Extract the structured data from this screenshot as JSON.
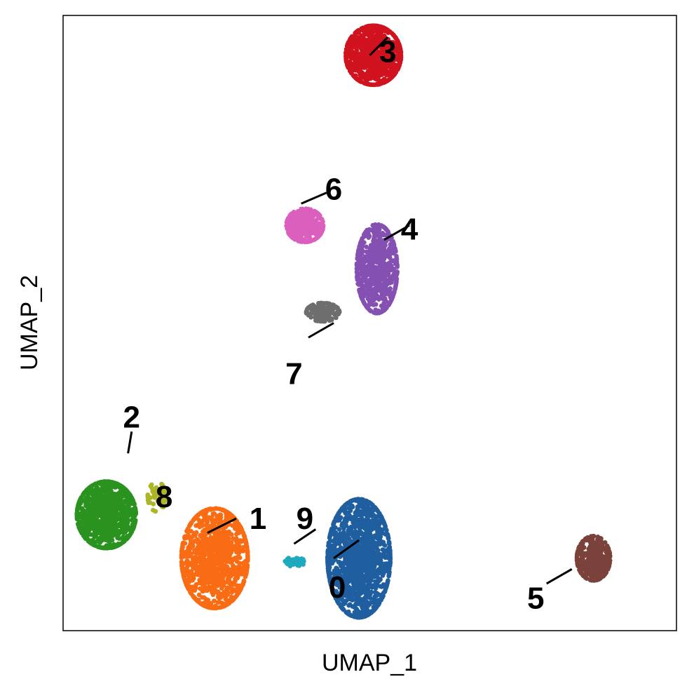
{
  "chart_data": {
    "type": "scatter",
    "title": "",
    "xlabel": "UMAP_1",
    "ylabel": "UMAP_2",
    "xlim": [
      -7.0,
      10.0
    ],
    "ylim": [
      -8.0,
      9.0
    ],
    "grid": false,
    "legend": "none (cluster numbers labeled on plot)",
    "clusters": [
      {
        "id": "0",
        "color": "#1f5fa0",
        "center": [
          1.2,
          -6.0
        ],
        "spread": [
          0.85,
          1.6
        ],
        "count": 1400
      },
      {
        "id": "1",
        "color": "#f96c14",
        "center": [
          -2.8,
          -6.0
        ],
        "spread": [
          0.9,
          1.35
        ],
        "count": 1200
      },
      {
        "id": "2",
        "color": "#2a9320",
        "center": [
          -5.8,
          -4.8
        ],
        "spread": [
          0.8,
          0.9
        ],
        "count": 900
      },
      {
        "id": "3",
        "color": "#d0131f",
        "center": [
          1.6,
          7.9
        ],
        "spread": [
          0.75,
          0.8
        ],
        "count": 800
      },
      {
        "id": "4",
        "color": "#8450b2",
        "center": [
          1.7,
          2.0
        ],
        "spread": [
          0.55,
          1.2
        ],
        "count": 650
      },
      {
        "id": "5",
        "color": "#7a423a",
        "center": [
          7.7,
          -6.0
        ],
        "spread": [
          0.45,
          0.6
        ],
        "count": 350
      },
      {
        "id": "6",
        "color": "#db5fbd",
        "center": [
          -0.3,
          3.2
        ],
        "spread": [
          0.5,
          0.45
        ],
        "count": 350
      },
      {
        "id": "7",
        "color": "#6e6e6e",
        "center": [
          0.2,
          0.8
        ],
        "spread": [
          0.45,
          0.25
        ],
        "count": 150
      },
      {
        "id": "8",
        "color": "#adb627",
        "center": [
          -4.4,
          -4.3
        ],
        "spread": [
          0.25,
          0.4
        ],
        "count": 60
      },
      {
        "id": "9",
        "color": "#1fa9bf",
        "center": [
          -0.6,
          -6.1
        ],
        "spread": [
          0.3,
          0.12
        ],
        "count": 40
      }
    ],
    "labels": [
      {
        "text": "0",
        "data_x": 0.6,
        "data_y": -6.8,
        "line_from": [
          0.5,
          -6.0
        ],
        "line_to": [
          1.2,
          -5.5
        ]
      },
      {
        "text": "1",
        "data_x": -1.6,
        "data_y": -4.9,
        "line_from": [
          -3.0,
          -5.3
        ],
        "line_to": [
          -2.2,
          -4.9
        ]
      },
      {
        "text": "2",
        "data_x": -5.1,
        "data_y": -2.1,
        "line_from": [
          -5.2,
          -3.1
        ],
        "line_to": [
          -5.1,
          -2.5
        ]
      },
      {
        "text": "3",
        "data_x": 2.0,
        "data_y": 8.0,
        "line_from": [
          1.5,
          7.9
        ],
        "line_to": [
          2.0,
          8.4
        ]
      },
      {
        "text": "4",
        "data_x": 2.6,
        "data_y": 3.1,
        "line_from": [
          1.9,
          2.8
        ],
        "line_to": [
          2.6,
          3.2
        ]
      },
      {
        "text": "5",
        "data_x": 6.1,
        "data_y": -7.1,
        "line_from": [
          6.4,
          -6.7
        ],
        "line_to": [
          7.1,
          -6.3
        ]
      },
      {
        "text": "6",
        "data_x": 0.5,
        "data_y": 4.2,
        "line_from": [
          -0.4,
          3.8
        ],
        "line_to": [
          0.3,
          4.1
        ]
      },
      {
        "text": "7",
        "data_x": -0.6,
        "data_y": -0.9,
        "line_from": [
          -0.2,
          0.1
        ],
        "line_to": [
          0.5,
          0.5
        ]
      },
      {
        "text": "8",
        "data_x": -4.2,
        "data_y": -4.3,
        "line_from": null,
        "line_to": null
      },
      {
        "text": "9",
        "data_x": -0.3,
        "data_y": -4.9,
        "line_from": [
          -0.6,
          -5.6
        ],
        "line_to": [
          0.0,
          -5.2
        ]
      }
    ]
  }
}
